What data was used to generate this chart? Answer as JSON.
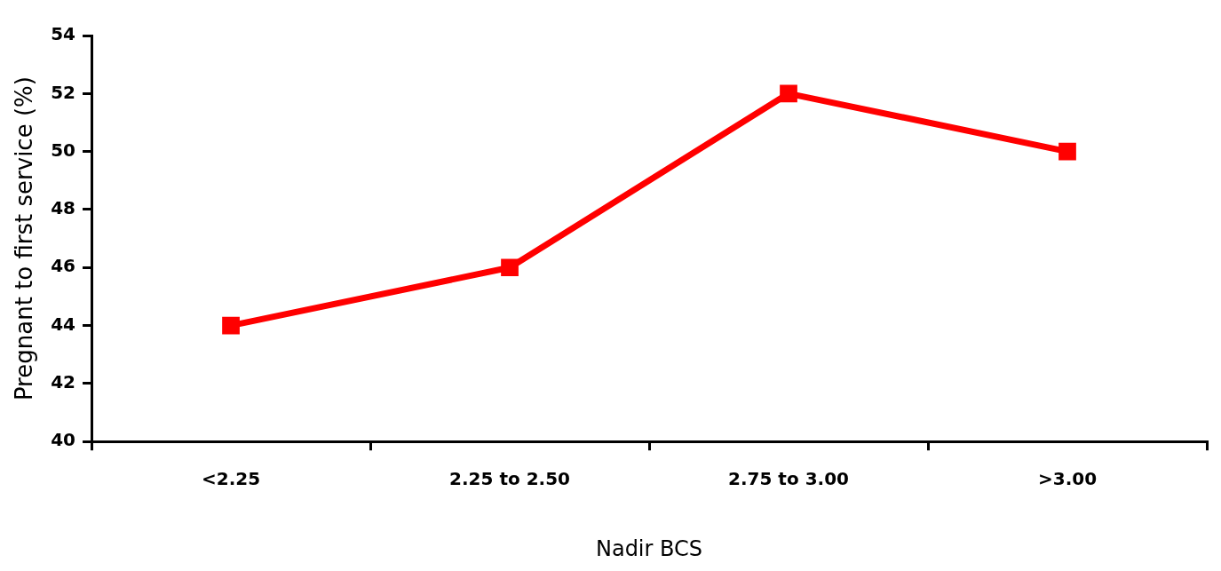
{
  "chart_data": {
    "type": "line",
    "xlabel": "Nadir BCS",
    "ylabel": "Pregnant to first service (%)",
    "categories": [
      "<2.25",
      "2.25 to 2.50",
      "2.75 to 3.00",
      ">3.00"
    ],
    "series": [
      {
        "color": "#ff0000",
        "values": [
          44,
          46,
          52,
          50
        ]
      }
    ],
    "ylim": [
      40,
      54
    ],
    "yticks": [
      40,
      42,
      44,
      46,
      48,
      50,
      52,
      54
    ],
    "marker": "square",
    "line_style": "solid",
    "grid": false,
    "legend": false
  }
}
